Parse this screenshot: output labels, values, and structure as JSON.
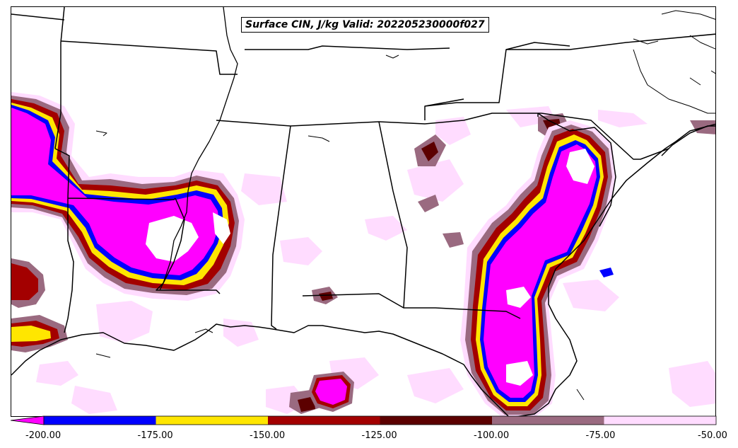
{
  "title": "Surface CIN, J/kg Valid: 202205230000f027",
  "colorbar": {
    "colors": [
      "#ff00ff",
      "#0000ff",
      "#ffe600",
      "#a30000",
      "#5c0000",
      "#9a6a80",
      "#ffdcff"
    ],
    "bins": [
      {
        "from": -200,
        "to": -175,
        "color": "#0000ff"
      },
      {
        "from": -175,
        "to": -150,
        "color": "#ffe600"
      },
      {
        "from": -150,
        "to": -125,
        "color": "#a30000"
      },
      {
        "from": -125,
        "to": -100,
        "color": "#5c0000"
      },
      {
        "from": -100,
        "to": -75,
        "color": "#9a6a80"
      },
      {
        "from": -75,
        "to": -50,
        "color": "#ffdcff"
      }
    ],
    "extend_below_color": "#ff00ff",
    "tick_labels": [
      "-200.00",
      "-175.00",
      "-150.00",
      "-125.00",
      "-100.00",
      "-75.00",
      "-50.00"
    ]
  },
  "map": {
    "region": "Southeastern United States",
    "field": "Surface CIN",
    "units": "J/kg",
    "boundary_color": "#000000"
  }
}
